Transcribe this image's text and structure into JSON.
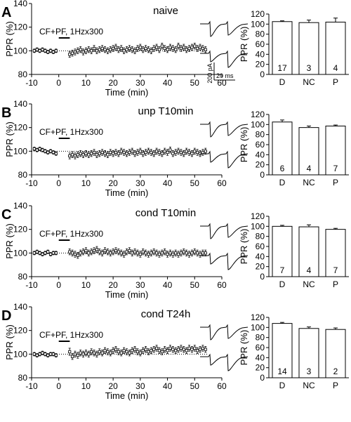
{
  "chart_data": [
    {
      "panel": "A",
      "title": "naive",
      "stim_label": "CF+PF, 1Hzx300",
      "timecourse": {
        "type": "scatter",
        "xlabel": "Time (min)",
        "ylabel": "PPR (%)",
        "xlim": [
          -10,
          60
        ],
        "ylim": [
          80,
          140
        ],
        "xticks": [
          "-10",
          "0",
          "10",
          "20",
          "30",
          "40",
          "50",
          "60"
        ],
        "yticks": [
          "80",
          "100",
          "120",
          "140"
        ],
        "baseline": 100,
        "stim_window": [
          0,
          2.5
        ],
        "x": [
          -9,
          -8,
          -7,
          -6,
          -5,
          -4,
          -3,
          -2,
          -1,
          4,
          5,
          6,
          7,
          8,
          9,
          10,
          11,
          12,
          13,
          14,
          15,
          16,
          17,
          18,
          19,
          20,
          21,
          22,
          23,
          24,
          25,
          26,
          27,
          28,
          29,
          30,
          31,
          32,
          33,
          34,
          35,
          36,
          37,
          38,
          39,
          40,
          41,
          42,
          43,
          44,
          45,
          46,
          47,
          48,
          49,
          50,
          51,
          52,
          53,
          54
        ],
        "y": [
          100,
          101,
          100,
          101,
          100,
          99,
          100,
          99,
          100,
          97,
          98,
          99,
          100,
          101,
          99,
          100,
          101,
          100,
          102,
          100,
          101,
          102,
          101,
          100,
          101,
          102,
          103,
          101,
          102,
          100,
          101,
          102,
          101,
          100,
          102,
          103,
          101,
          102,
          101,
          100,
          102,
          103,
          101,
          104,
          102,
          101,
          103,
          102,
          101,
          104,
          102,
          103,
          101,
          102,
          103,
          104,
          102,
          103,
          102,
          101
        ],
        "err": [
          1.5,
          1.5,
          1.5,
          1.5,
          1.5,
          1.5,
          1.5,
          1.5,
          1.5,
          2.5,
          2.5,
          2.5,
          2.5,
          2.5,
          2.5,
          2.5,
          2.5,
          2.5,
          2.5,
          2.5,
          2.5,
          2.5,
          2.5,
          2.5,
          2.5,
          2.5,
          2.5,
          2.5,
          2.5,
          2.5,
          2.5,
          2.5,
          2.5,
          2.5,
          2.5,
          2.5,
          2.5,
          2.5,
          2.5,
          2.5,
          2.5,
          2.5,
          2.5,
          2.5,
          2.5,
          2.5,
          2.5,
          2.5,
          2.5,
          2.5,
          2.5,
          2.5,
          2.5,
          2.5,
          2.5,
          2.5,
          2.5,
          2.5,
          2.5,
          2.5
        ]
      },
      "bars": {
        "type": "bar",
        "ylabel": "PPR (%)",
        "ylim": [
          0,
          120
        ],
        "yticks": [
          "0",
          "20",
          "40",
          "60",
          "80",
          "100",
          "120"
        ],
        "categories": [
          "D",
          "NC",
          "P"
        ],
        "values": [
          105,
          103,
          104
        ],
        "err": [
          1.5,
          5,
          8
        ],
        "n": [
          "17",
          "3",
          "4"
        ]
      },
      "scale_bar": {
        "current": "200 pA",
        "time": "20 ms"
      }
    },
    {
      "panel": "B",
      "title": "unp T10min",
      "stim_label": "CF+PF, 1Hzx300",
      "timecourse": {
        "type": "scatter",
        "xlabel": "Time (min)",
        "ylabel": "PPR (%)",
        "xlim": [
          -10,
          60
        ],
        "ylim": [
          80,
          140
        ],
        "xticks": [
          "-10",
          "0",
          "10",
          "20",
          "30",
          "40",
          "50",
          "60"
        ],
        "yticks": [
          "80",
          "100",
          "120",
          "140"
        ],
        "baseline": 100,
        "stim_window": [
          0,
          2.5
        ],
        "x": [
          -9,
          -8,
          -7,
          -6,
          -5,
          -4,
          -3,
          -2,
          -1,
          4,
          5,
          6,
          7,
          8,
          9,
          10,
          11,
          12,
          13,
          14,
          15,
          16,
          17,
          18,
          19,
          20,
          21,
          22,
          23,
          24,
          25,
          26,
          27,
          28,
          29,
          30,
          31,
          32,
          33,
          34,
          35,
          36,
          37,
          38,
          39,
          40,
          41,
          42,
          43,
          44,
          45,
          46,
          47,
          48,
          49,
          50,
          51,
          52,
          53,
          54
        ],
        "y": [
          102,
          101,
          102,
          101,
          100,
          99,
          100,
          99,
          98,
          96,
          97,
          96,
          97,
          98,
          97,
          98,
          97,
          98,
          99,
          97,
          98,
          99,
          98,
          97,
          99,
          98,
          99,
          98,
          100,
          99,
          98,
          99,
          100,
          98,
          99,
          100,
          98,
          99,
          100,
          99,
          98,
          100,
          99,
          98,
          100,
          99,
          101,
          98,
          99,
          100,
          99,
          98,
          100,
          99,
          98,
          100,
          99,
          98,
          99,
          100
        ],
        "err": [
          1.5,
          1.5,
          1.5,
          1.5,
          1.5,
          1.5,
          1.5,
          1.5,
          1.5,
          2.5,
          2.5,
          2.5,
          2.5,
          2.5,
          2.5,
          2.5,
          2.5,
          2.5,
          2.5,
          2.5,
          2.5,
          2.5,
          2.5,
          2.5,
          2.5,
          2.5,
          2.5,
          2.5,
          2.5,
          2.5,
          2.5,
          2.5,
          2.5,
          2.5,
          2.5,
          2.5,
          2.5,
          2.5,
          2.5,
          2.5,
          2.5,
          2.5,
          2.5,
          2.5,
          2.5,
          2.5,
          2.5,
          2.5,
          2.5,
          2.5,
          2.5,
          2.5,
          2.5,
          2.5,
          2.5,
          2.5,
          2.5,
          2.5,
          2.5,
          2.5
        ]
      },
      "bars": {
        "type": "bar",
        "ylabel": "PPR (%)",
        "ylim": [
          0,
          120
        ],
        "yticks": [
          "0",
          "20",
          "40",
          "60",
          "80",
          "100",
          "120"
        ],
        "categories": [
          "D",
          "NC",
          "P"
        ],
        "values": [
          105,
          94,
          97
        ],
        "err": [
          4,
          3,
          2
        ],
        "n": [
          "6",
          "4",
          "7"
        ]
      }
    },
    {
      "panel": "C",
      "title": "cond T10min",
      "stim_label": "CF+PF, 1Hzx300",
      "timecourse": {
        "type": "scatter",
        "xlabel": "Time (min)",
        "ylabel": "PPR (%)",
        "xlim": [
          -10,
          60
        ],
        "ylim": [
          80,
          140
        ],
        "xticks": [
          "-10",
          "0",
          "10",
          "20",
          "30",
          "40",
          "50",
          "60"
        ],
        "yticks": [
          "80",
          "100",
          "120",
          "140"
        ],
        "baseline": 100,
        "stim_window": [
          0,
          2.5
        ],
        "x": [
          -9,
          -8,
          -7,
          -6,
          -5,
          -4,
          -3,
          -2,
          -1,
          4,
          5,
          6,
          7,
          8,
          9,
          10,
          11,
          12,
          13,
          14,
          15,
          16,
          17,
          18,
          19,
          20,
          21,
          22,
          23,
          24,
          25,
          26,
          27,
          28,
          29,
          30,
          31,
          32,
          33,
          34,
          35,
          36,
          37,
          38,
          39,
          40,
          41,
          42,
          43,
          44,
          45,
          46,
          47,
          48,
          49,
          50,
          51,
          52,
          53,
          54
        ],
        "y": [
          100,
          101,
          100,
          99,
          100,
          101,
          99,
          100,
          100,
          101,
          100,
          99,
          98,
          100,
          101,
          102,
          100,
          101,
          102,
          103,
          101,
          100,
          102,
          101,
          100,
          101,
          102,
          101,
          100,
          99,
          101,
          102,
          100,
          101,
          100,
          99,
          101,
          100,
          99,
          100,
          101,
          100,
          99,
          100,
          101,
          99,
          100,
          99,
          100,
          99,
          100,
          101,
          100,
          99,
          100,
          101,
          100,
          99,
          100,
          100
        ],
        "err": [
          1.5,
          1.5,
          1.5,
          1.5,
          1.5,
          1.5,
          1.5,
          1.5,
          1.5,
          2.5,
          2.5,
          2.5,
          2.5,
          2.5,
          2.5,
          2.5,
          2.5,
          2.5,
          2.5,
          2.5,
          2.5,
          2.5,
          2.5,
          2.5,
          2.5,
          2.5,
          2.5,
          2.5,
          2.5,
          2.5,
          2.5,
          2.5,
          2.5,
          2.5,
          2.5,
          2.5,
          2.5,
          2.5,
          2.5,
          2.5,
          2.5,
          2.5,
          2.5,
          2.5,
          2.5,
          2.5,
          2.5,
          2.5,
          2.5,
          2.5,
          2.5,
          2.5,
          2.5,
          2.5,
          2.5,
          2.5,
          2.5,
          2.5,
          2.5,
          2.5
        ]
      },
      "bars": {
        "type": "bar",
        "ylabel": "PPR (%)",
        "ylim": [
          0,
          120
        ],
        "yticks": [
          "0",
          "20",
          "40",
          "60",
          "80",
          "100",
          "120"
        ],
        "categories": [
          "D",
          "NC",
          "P"
        ],
        "values": [
          100,
          99,
          94
        ],
        "err": [
          2,
          4,
          2
        ],
        "n": [
          "7",
          "4",
          "7"
        ]
      }
    },
    {
      "panel": "D",
      "title": "cond T24h",
      "stim_label": "CF+PF, 1Hzx300",
      "timecourse": {
        "type": "scatter",
        "xlabel": "Time (min)",
        "ylabel": "PPR (%)",
        "xlim": [
          -10,
          60
        ],
        "ylim": [
          80,
          140
        ],
        "xticks": [
          "-10",
          "0",
          "10",
          "20",
          "30",
          "40",
          "50",
          "60"
        ],
        "yticks": [
          "80",
          "100",
          "120",
          "140"
        ],
        "baseline": 100,
        "stim_window": [
          0,
          2.5
        ],
        "x": [
          -9,
          -8,
          -7,
          -6,
          -5,
          -4,
          -3,
          -2,
          -1,
          4,
          5,
          6,
          7,
          8,
          9,
          10,
          11,
          12,
          13,
          14,
          15,
          16,
          17,
          18,
          19,
          20,
          21,
          22,
          23,
          24,
          25,
          26,
          27,
          28,
          29,
          30,
          31,
          32,
          33,
          34,
          35,
          36,
          37,
          38,
          39,
          40,
          41,
          42,
          43,
          44,
          45,
          46,
          47,
          48,
          49,
          50,
          51,
          52,
          53,
          54
        ],
        "y": [
          100,
          99,
          100,
          101,
          100,
          99,
          100,
          100,
          99,
          102,
          98,
          100,
          99,
          101,
          100,
          101,
          100,
          102,
          101,
          100,
          102,
          101,
          103,
          102,
          101,
          103,
          104,
          102,
          101,
          103,
          102,
          101,
          103,
          104,
          102,
          101,
          103,
          104,
          102,
          103,
          104,
          105,
          103,
          102,
          104,
          103,
          105,
          104,
          103,
          104,
          105,
          104,
          103,
          105,
          104,
          105,
          103,
          104,
          105,
          104
        ],
        "err": [
          1.5,
          1.5,
          1.5,
          1.5,
          1.5,
          1.5,
          1.5,
          1.5,
          1.5,
          3,
          2.5,
          2.5,
          2.5,
          2.5,
          2.5,
          2.5,
          2.5,
          2.5,
          2.5,
          2.5,
          2.5,
          2.5,
          2.5,
          2.5,
          2.5,
          2.5,
          2.5,
          2.5,
          2.5,
          2.5,
          2.5,
          2.5,
          2.5,
          2.5,
          2.5,
          2.5,
          2.5,
          2.5,
          2.5,
          2.5,
          2.5,
          2.5,
          2.5,
          2.5,
          2.5,
          2.5,
          2.5,
          2.5,
          2.5,
          2.5,
          2.5,
          2.5,
          2.5,
          2.5,
          2.5,
          2.5,
          2.5,
          2.5,
          2.5,
          2.5
        ]
      },
      "bars": {
        "type": "bar",
        "ylabel": "PPR (%)",
        "ylim": [
          0,
          120
        ],
        "yticks": [
          "0",
          "20",
          "40",
          "60",
          "80",
          "100",
          "120"
        ],
        "categories": [
          "D",
          "NC",
          "P"
        ],
        "values": [
          108,
          98,
          96
        ],
        "err": [
          2,
          3,
          3
        ],
        "n": [
          "14",
          "3",
          "2"
        ]
      }
    }
  ]
}
